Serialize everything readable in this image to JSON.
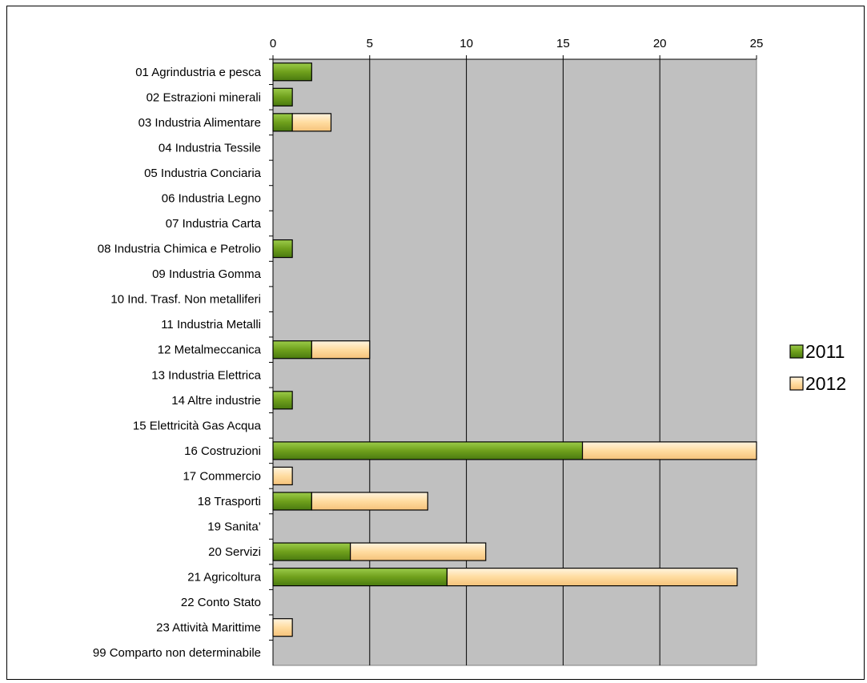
{
  "chart_data": {
    "type": "bar",
    "orientation": "horizontal",
    "stacked": true,
    "title": "",
    "xlabel": "",
    "ylabel": "",
    "xlim": [
      0,
      25
    ],
    "x_ticks": [
      0,
      5,
      10,
      15,
      20,
      25
    ],
    "x_axis_position": "top",
    "grid": true,
    "plot_background": "#c0c0c0",
    "legend_position": "right",
    "categories": [
      "01 Agrindustria e pesca",
      "02 Estrazioni minerali",
      "03 Industria Alimentare",
      "04 Industria Tessile",
      "05 Industria Conciaria",
      "06 Industria Legno",
      "07 Industria Carta",
      "08 Industria Chimica e Petrolio",
      "09 Industria Gomma",
      "10 Ind. Trasf. Non metalliferi",
      "11 Industria Metalli",
      "12 Metalmeccanica",
      "13 Industria Elettrica",
      "14 Altre industrie",
      "15 Elettricità Gas Acqua",
      "16 Costruzioni",
      "17 Commercio",
      "18 Trasporti",
      "19 Sanita’",
      "20 Servizi",
      "21 Agricoltura",
      "22 Conto Stato",
      "23 Attività Marittime",
      "99 Comparto non determinabile"
    ],
    "series": [
      {
        "name": "2011",
        "color": "#6fa01c",
        "values": [
          2,
          1,
          1,
          0,
          0,
          0,
          0,
          1,
          0,
          0,
          0,
          2,
          0,
          1,
          0,
          16,
          0,
          2,
          0,
          4,
          9,
          0,
          0,
          0
        ]
      },
      {
        "name": "2012",
        "color": "#ffdca0",
        "values": [
          0,
          0,
          2,
          0,
          0,
          0,
          0,
          0,
          0,
          0,
          0,
          3,
          0,
          0,
          0,
          9,
          1,
          6,
          0,
          7,
          15,
          0,
          1,
          0
        ]
      }
    ]
  }
}
